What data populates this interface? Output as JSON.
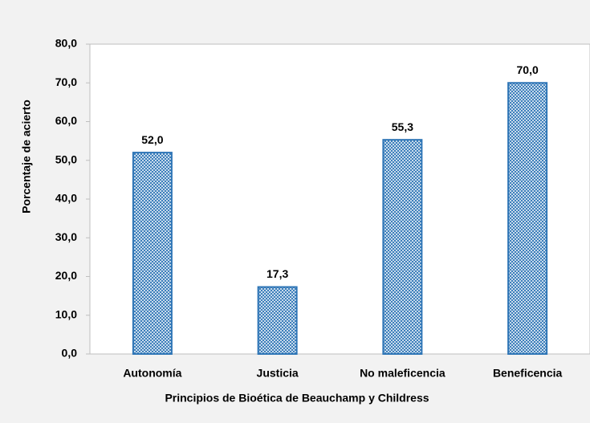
{
  "chart_data": {
    "type": "bar",
    "x_label": "Principios de Bioética de Beauchamp y Childress",
    "y_label": "Porcentaje de acierto",
    "categories": [
      "Autonomía",
      "Justicia",
      "No maleficencia",
      "Beneficencia"
    ],
    "values": [
      52.0,
      17.3,
      55.3,
      70.0
    ],
    "value_labels": [
      "52,0",
      "17,3",
      "55,3",
      "70,0"
    ],
    "color": "#2e75b6",
    "ylim": [
      0,
      80
    ],
    "yticks": [
      {
        "value": 0,
        "label": "0,0"
      },
      {
        "value": 10,
        "label": "10,0"
      },
      {
        "value": 20,
        "label": "20,0"
      },
      {
        "value": 30,
        "label": "30,0"
      },
      {
        "value": 40,
        "label": "40,0"
      },
      {
        "value": 50,
        "label": "50,0"
      },
      {
        "value": 60,
        "label": "60,0"
      },
      {
        "value": 70,
        "label": "70,0"
      },
      {
        "value": 80,
        "label": "80,0"
      }
    ],
    "grid": false
  }
}
